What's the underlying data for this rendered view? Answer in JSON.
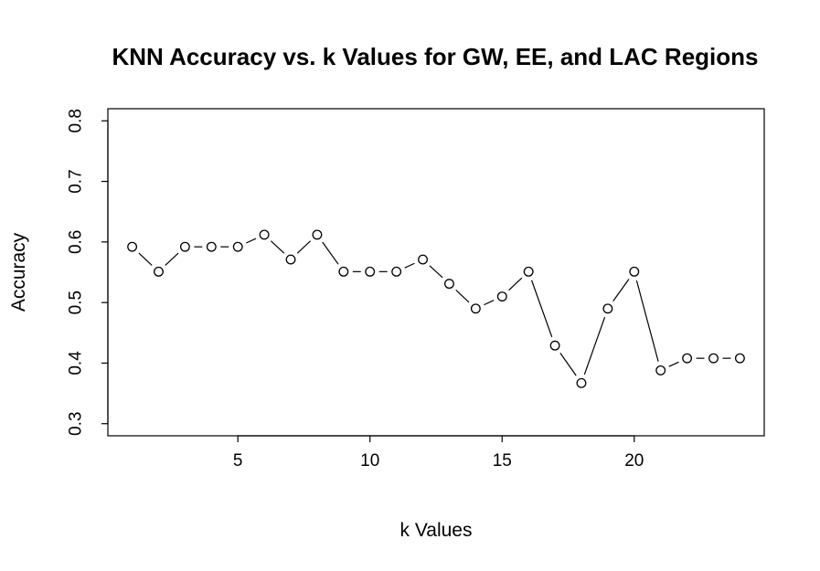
{
  "chart_data": {
    "type": "line",
    "title": "KNN Accuracy vs. k Values for GW, EE, and LAC Regions",
    "xlabel": "k Values",
    "ylabel": "Accuracy",
    "x": [
      1,
      2,
      3,
      4,
      5,
      6,
      7,
      8,
      9,
      10,
      11,
      12,
      13,
      14,
      15,
      16,
      17,
      18,
      19,
      20,
      21,
      22,
      23,
      24
    ],
    "series": [
      {
        "values": [
          0.592,
          0.551,
          0.592,
          0.592,
          0.592,
          0.612,
          0.571,
          0.612,
          0.551,
          0.551,
          0.551,
          0.571,
          0.531,
          0.49,
          0.51,
          0.551,
          0.429,
          0.367,
          0.49,
          0.551,
          0.388,
          0.408,
          0.408,
          0.408
        ]
      }
    ],
    "xlim": [
      0.08,
      24.92
    ],
    "ylim": [
      0.28,
      0.82
    ],
    "xticks": [
      5,
      10,
      15,
      20
    ],
    "yticks": [
      0.3,
      0.4,
      0.5,
      0.6,
      0.7,
      0.8
    ],
    "xtick_labels": [
      "5",
      "10",
      "15",
      "20"
    ],
    "ytick_labels": [
      "0.3",
      "0.4",
      "0.5",
      "0.6",
      "0.7",
      "0.8"
    ],
    "grid": false,
    "marker": "open-circle",
    "line_color": "#000000",
    "marker_fill": "#ffffff"
  }
}
